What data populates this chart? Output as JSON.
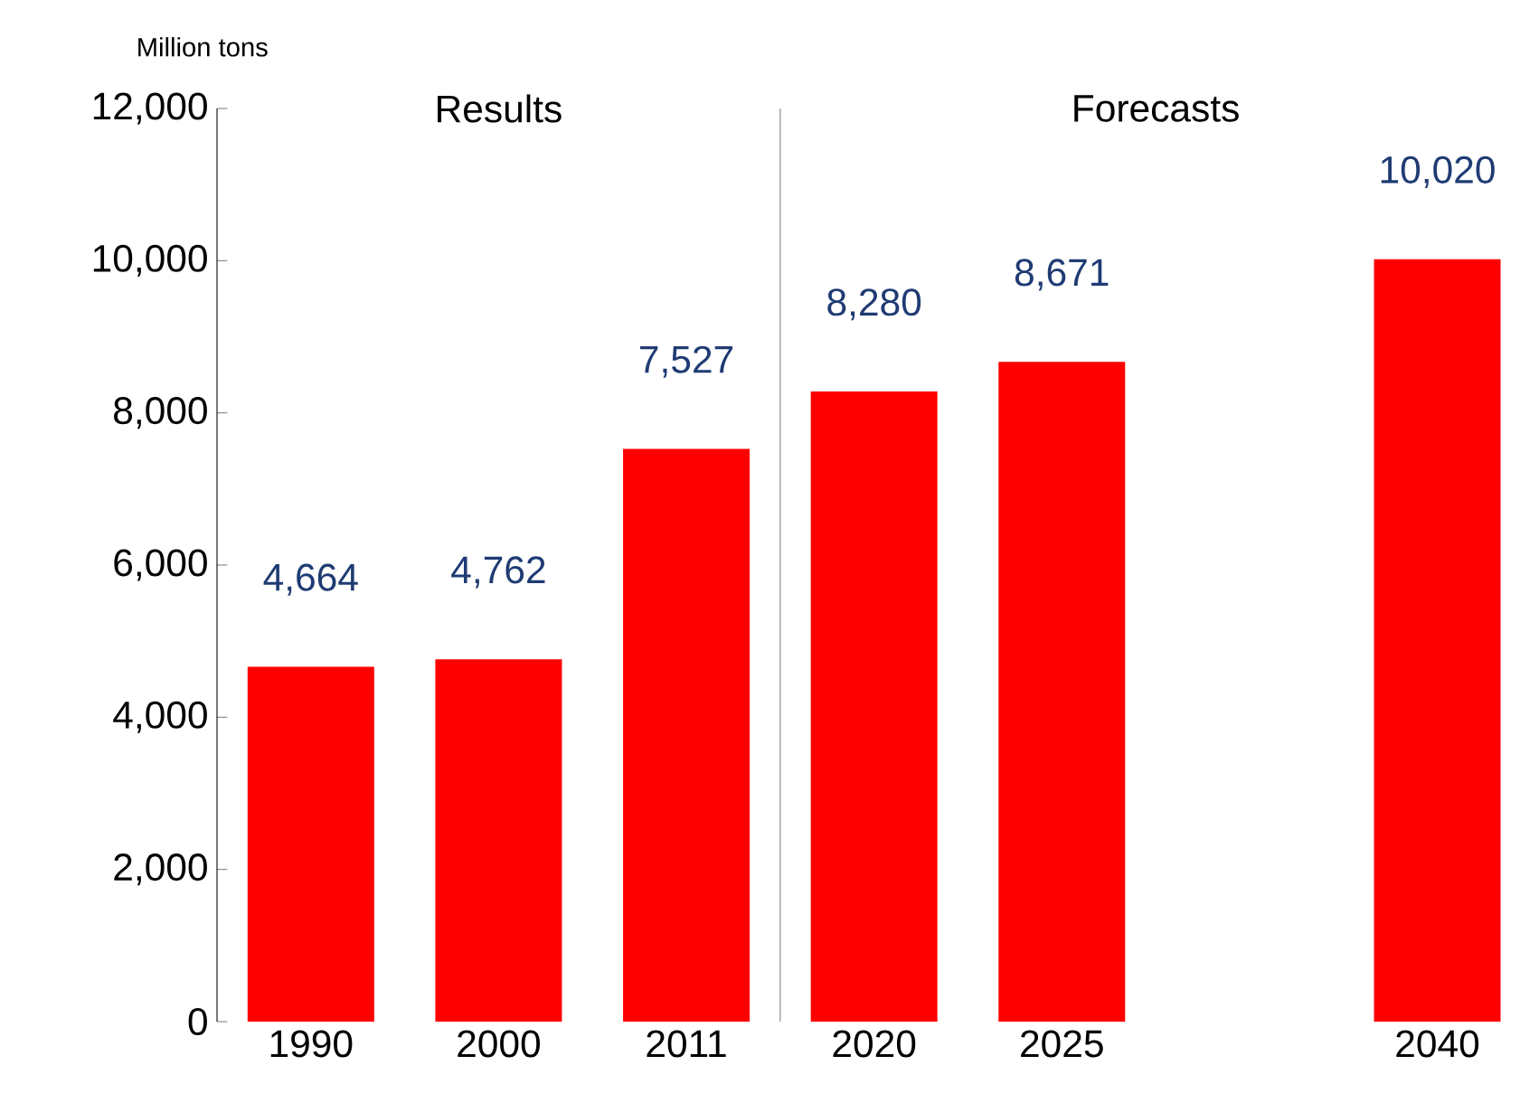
{
  "chart_data": {
    "type": "bar",
    "ylabel": "Million tons",
    "categories": [
      "1990",
      "2000",
      "2011",
      "2020",
      "2025",
      null,
      "2040"
    ],
    "values": [
      4664,
      4762,
      7527,
      8280,
      8671,
      null,
      10020
    ],
    "value_labels": [
      "4,664",
      "4,762",
      "7,527",
      "8,280",
      "8,671",
      null,
      "10,020"
    ],
    "color": "#ff0000",
    "ylim": [
      0,
      12000
    ],
    "yticks": [
      0,
      {
        "value": 2000,
        "label": "2,000"
      },
      {
        "value": 4000,
        "label": "4,000"
      },
      {
        "value": 6000,
        "label": "6,000"
      },
      {
        "value": 8000,
        "label": "8,000"
      },
      {
        "value": 10000,
        "label": "10,000"
      },
      {
        "value": 12000,
        "label": "12,000"
      }
    ],
    "annotations": [
      "Results",
      "Forecasts"
    ]
  }
}
